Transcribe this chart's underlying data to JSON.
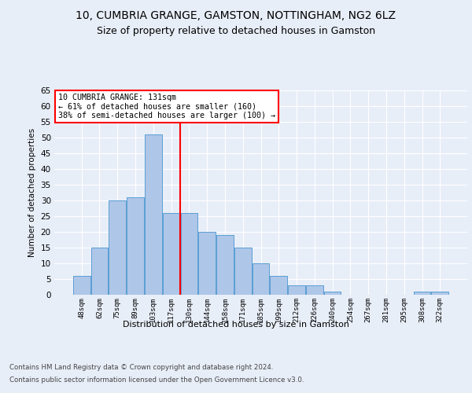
{
  "title1": "10, CUMBRIA GRANGE, GAMSTON, NOTTINGHAM, NG2 6LZ",
  "title2": "Size of property relative to detached houses in Gamston",
  "xlabel": "Distribution of detached houses by size in Gamston",
  "ylabel": "Number of detached properties",
  "bar_labels": [
    "48sqm",
    "62sqm",
    "75sqm",
    "89sqm",
    "103sqm",
    "117sqm",
    "130sqm",
    "144sqm",
    "158sqm",
    "171sqm",
    "185sqm",
    "199sqm",
    "212sqm",
    "226sqm",
    "240sqm",
    "254sqm",
    "267sqm",
    "281sqm",
    "295sqm",
    "308sqm",
    "322sqm"
  ],
  "bar_values": [
    6,
    15,
    30,
    31,
    51,
    26,
    26,
    20,
    19,
    15,
    10,
    6,
    3,
    3,
    1,
    0,
    0,
    0,
    0,
    1,
    1
  ],
  "bar_color": "#aec6e8",
  "bar_edgecolor": "#5a9fd4",
  "annotation_title": "10 CUMBRIA GRANGE: 131sqm",
  "annotation_line1": "← 61% of detached houses are smaller (160)",
  "annotation_line2": "38% of semi-detached houses are larger (100) →",
  "vline_color": "red",
  "ylim": [
    0,
    65
  ],
  "yticks": [
    0,
    5,
    10,
    15,
    20,
    25,
    30,
    35,
    40,
    45,
    50,
    55,
    60,
    65
  ],
  "footer1": "Contains HM Land Registry data © Crown copyright and database right 2024.",
  "footer2": "Contains public sector information licensed under the Open Government Licence v3.0.",
  "background_color": "#e8eef8",
  "plot_background": "#e8eef8",
  "grid_color": "#ffffff",
  "title1_fontsize": 10,
  "title2_fontsize": 9
}
